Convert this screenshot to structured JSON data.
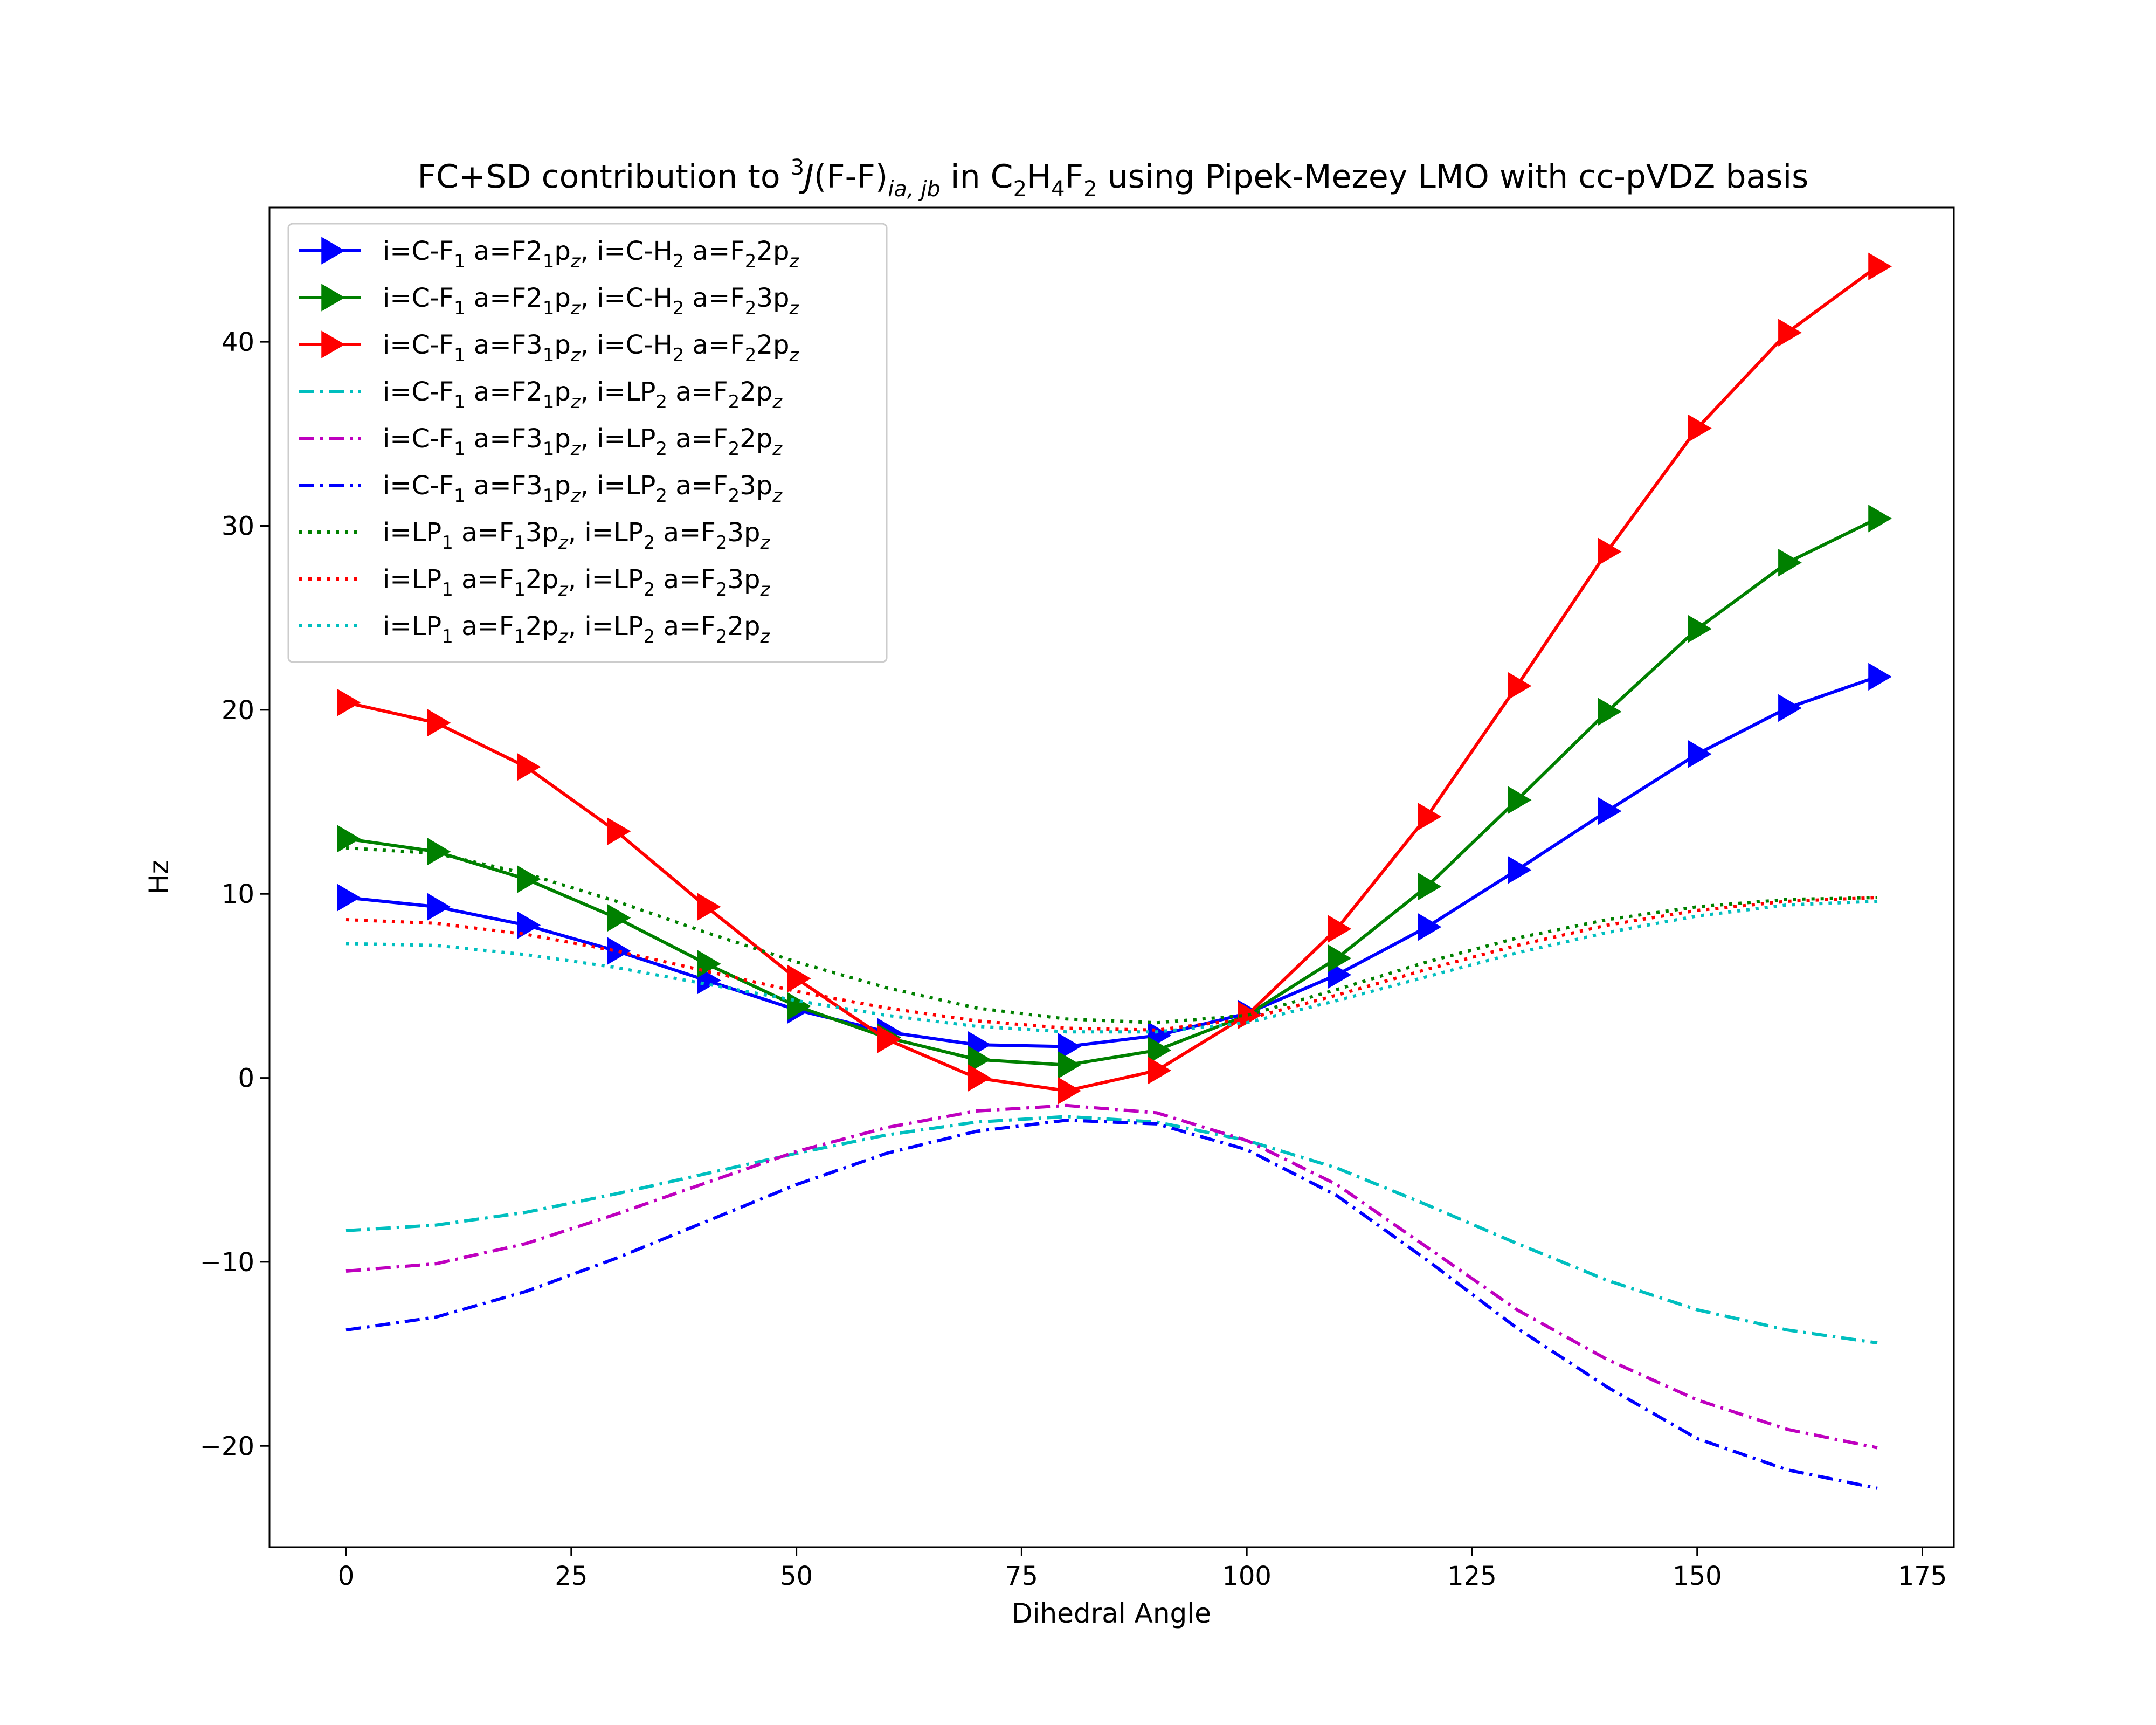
{
  "chart_data": {
    "type": "line",
    "title": {
      "prefix": "FC+SD contribution to ",
      "sup": "3",
      "j": "J",
      "paren": "(F-F)",
      "sub_ia": "ia, jb",
      "mid": " in C",
      "s1": "2",
      "h": "H",
      "s2": "4",
      "f": "F",
      "s3": "2",
      "suffix": " using Pipek-Mezey LMO with cc-pVDZ basis"
    },
    "xlabel": "Dihedral Angle",
    "ylabel": "Hz",
    "xlim": [
      -8.5,
      178.5
    ],
    "ylim": [
      -25.5,
      47.3
    ],
    "xticks": [
      0,
      25,
      50,
      75,
      100,
      125,
      150,
      175
    ],
    "yticks": [
      -20,
      -10,
      0,
      10,
      20,
      30,
      40
    ],
    "xtick_labels": [
      "0",
      "25",
      "50",
      "75",
      "100",
      "125",
      "150",
      "175"
    ],
    "ytick_labels": [
      "−20",
      "−10",
      "0",
      "10",
      "20",
      "30",
      "40"
    ],
    "grid": false,
    "legend_position": "top-left",
    "x": [
      0,
      10,
      20,
      30,
      40,
      50,
      60,
      70,
      80,
      90,
      100,
      110,
      120,
      130,
      140,
      150,
      160,
      170
    ],
    "series": [
      {
        "legend": [
          {
            "t": "i=C-F"
          },
          {
            "t": "1",
            "sub": true
          },
          {
            "t": " a=F2"
          },
          {
            "t": "1",
            "sub": true
          },
          {
            "t": "p"
          },
          {
            "t": "z",
            "sub": true,
            "italic": true
          },
          {
            "t": ", i=C-H"
          },
          {
            "t": "2",
            "sub": true
          },
          {
            "t": " a=F"
          },
          {
            "t": "2",
            "sub": true
          },
          {
            "t": "2p"
          },
          {
            "t": "z",
            "sub": true,
            "italic": true
          }
        ],
        "color": "#0000ff",
        "style": "solid",
        "marker": "triangle-right",
        "values": [
          9.8,
          9.3,
          8.3,
          6.9,
          5.3,
          3.7,
          2.5,
          1.8,
          1.7,
          2.3,
          3.5,
          5.6,
          8.2,
          11.3,
          14.5,
          17.6,
          20.1,
          21.8
        ]
      },
      {
        "legend": [
          {
            "t": "i=C-F"
          },
          {
            "t": "1",
            "sub": true
          },
          {
            "t": " a=F2"
          },
          {
            "t": "1",
            "sub": true
          },
          {
            "t": "p"
          },
          {
            "t": "z",
            "sub": true,
            "italic": true
          },
          {
            "t": ", i=C-H"
          },
          {
            "t": "2",
            "sub": true
          },
          {
            "t": " a=F"
          },
          {
            "t": "2",
            "sub": true
          },
          {
            "t": "3p"
          },
          {
            "t": "z",
            "sub": true,
            "italic": true
          }
        ],
        "color": "#008000",
        "style": "solid",
        "marker": "triangle-right",
        "values": [
          13.0,
          12.3,
          10.8,
          8.7,
          6.2,
          3.9,
          2.2,
          1.0,
          0.7,
          1.5,
          3.4,
          6.5,
          10.4,
          15.1,
          19.9,
          24.4,
          28.0,
          30.4
        ]
      },
      {
        "legend": [
          {
            "t": "i=C-F"
          },
          {
            "t": "1",
            "sub": true
          },
          {
            "t": " a=F3"
          },
          {
            "t": "1",
            "sub": true
          },
          {
            "t": "p"
          },
          {
            "t": "z",
            "sub": true,
            "italic": true
          },
          {
            "t": ", i=C-H"
          },
          {
            "t": "2",
            "sub": true
          },
          {
            "t": " a=F"
          },
          {
            "t": "2",
            "sub": true
          },
          {
            "t": "2p"
          },
          {
            "t": "z",
            "sub": true,
            "italic": true
          }
        ],
        "color": "#ff0000",
        "style": "solid",
        "marker": "triangle-right",
        "values": [
          20.4,
          19.3,
          16.9,
          13.4,
          9.3,
          5.4,
          2.1,
          0.0,
          -0.7,
          0.4,
          3.4,
          8.1,
          14.2,
          21.3,
          28.6,
          35.3,
          40.5,
          44.1
        ]
      },
      {
        "legend": [
          {
            "t": "i=C-F"
          },
          {
            "t": "1",
            "sub": true
          },
          {
            "t": " a=F2"
          },
          {
            "t": "1",
            "sub": true
          },
          {
            "t": "p"
          },
          {
            "t": "z",
            "sub": true,
            "italic": true
          },
          {
            "t": ", i=LP"
          },
          {
            "t": "2",
            "sub": true
          },
          {
            "t": " a=F"
          },
          {
            "t": "2",
            "sub": true
          },
          {
            "t": "2p"
          },
          {
            "t": "z",
            "sub": true,
            "italic": true
          }
        ],
        "color": "#00bfbf",
        "style": "dashdot",
        "marker": "none",
        "values": [
          -8.3,
          -8.0,
          -7.3,
          -6.3,
          -5.2,
          -4.1,
          -3.1,
          -2.4,
          -2.1,
          -2.4,
          -3.4,
          -4.9,
          -6.9,
          -9.0,
          -11.0,
          -12.6,
          -13.7,
          -14.4
        ]
      },
      {
        "legend": [
          {
            "t": "i=C-F"
          },
          {
            "t": "1",
            "sub": true
          },
          {
            "t": " a=F3"
          },
          {
            "t": "1",
            "sub": true
          },
          {
            "t": "p"
          },
          {
            "t": "z",
            "sub": true,
            "italic": true
          },
          {
            "t": ", i=LP"
          },
          {
            "t": "2",
            "sub": true
          },
          {
            "t": " a=F"
          },
          {
            "t": "2",
            "sub": true
          },
          {
            "t": "2p"
          },
          {
            "t": "z",
            "sub": true,
            "italic": true
          }
        ],
        "color": "#bf00bf",
        "style": "dashdot",
        "marker": "none",
        "values": [
          -10.5,
          -10.1,
          -9.0,
          -7.4,
          -5.7,
          -4.0,
          -2.7,
          -1.8,
          -1.5,
          -1.9,
          -3.4,
          -5.8,
          -9.2,
          -12.6,
          -15.3,
          -17.5,
          -19.1,
          -20.1
        ]
      },
      {
        "legend": [
          {
            "t": "i=C-F"
          },
          {
            "t": "1",
            "sub": true
          },
          {
            "t": " a=F3"
          },
          {
            "t": "1",
            "sub": true
          },
          {
            "t": "p"
          },
          {
            "t": "z",
            "sub": true,
            "italic": true
          },
          {
            "t": ", i=LP"
          },
          {
            "t": "2",
            "sub": true
          },
          {
            "t": " a=F"
          },
          {
            "t": "2",
            "sub": true
          },
          {
            "t": "3p"
          },
          {
            "t": "z",
            "sub": true,
            "italic": true
          }
        ],
        "color": "#0000ff",
        "style": "dashdot",
        "marker": "none",
        "values": [
          -13.7,
          -13.0,
          -11.6,
          -9.8,
          -7.8,
          -5.8,
          -4.1,
          -2.9,
          -2.3,
          -2.5,
          -3.9,
          -6.4,
          -9.9,
          -13.6,
          -16.8,
          -19.6,
          -21.3,
          -22.3
        ]
      },
      {
        "legend": [
          {
            "t": "i=LP"
          },
          {
            "t": "1",
            "sub": true
          },
          {
            "t": " a=F"
          },
          {
            "t": "1",
            "sub": true
          },
          {
            "t": "3p"
          },
          {
            "t": "z",
            "sub": true,
            "italic": true
          },
          {
            "t": ", i=LP"
          },
          {
            "t": "2",
            "sub": true
          },
          {
            "t": " a=F"
          },
          {
            "t": "2",
            "sub": true
          },
          {
            "t": "3p"
          },
          {
            "t": "z",
            "sub": true,
            "italic": true
          }
        ],
        "color": "#008000",
        "style": "dotted",
        "marker": "none",
        "values": [
          12.5,
          12.2,
          11.1,
          9.6,
          7.9,
          6.3,
          4.9,
          3.8,
          3.2,
          3.0,
          3.4,
          4.8,
          6.3,
          7.6,
          8.6,
          9.3,
          9.7,
          9.8
        ]
      },
      {
        "legend": [
          {
            "t": "i=LP"
          },
          {
            "t": "1",
            "sub": true
          },
          {
            "t": " a=F"
          },
          {
            "t": "1",
            "sub": true
          },
          {
            "t": "2p"
          },
          {
            "t": "z",
            "sub": true,
            "italic": true
          },
          {
            "t": ", i=LP"
          },
          {
            "t": "2",
            "sub": true
          },
          {
            "t": " a=F"
          },
          {
            "t": "2",
            "sub": true
          },
          {
            "t": "3p"
          },
          {
            "t": "z",
            "sub": true,
            "italic": true
          }
        ],
        "color": "#ff0000",
        "style": "dotted",
        "marker": "none",
        "values": [
          8.6,
          8.4,
          7.8,
          6.9,
          5.8,
          4.7,
          3.8,
          3.1,
          2.7,
          2.6,
          3.2,
          4.5,
          5.9,
          7.2,
          8.3,
          9.1,
          9.6,
          9.8
        ]
      },
      {
        "legend": [
          {
            "t": "i=LP"
          },
          {
            "t": "1",
            "sub": true
          },
          {
            "t": " a=F"
          },
          {
            "t": "1",
            "sub": true
          },
          {
            "t": "2p"
          },
          {
            "t": "z",
            "sub": true,
            "italic": true
          },
          {
            "t": ", i=LP"
          },
          {
            "t": "2",
            "sub": true
          },
          {
            "t": " a=F"
          },
          {
            "t": "2",
            "sub": true
          },
          {
            "t": "2p"
          },
          {
            "t": "z",
            "sub": true,
            "italic": true
          }
        ],
        "color": "#00bfbf",
        "style": "dotted",
        "marker": "none",
        "values": [
          7.3,
          7.2,
          6.7,
          6.0,
          5.1,
          4.2,
          3.4,
          2.8,
          2.5,
          2.5,
          3.0,
          4.2,
          5.5,
          6.8,
          7.9,
          8.8,
          9.4,
          9.6
        ]
      }
    ]
  }
}
